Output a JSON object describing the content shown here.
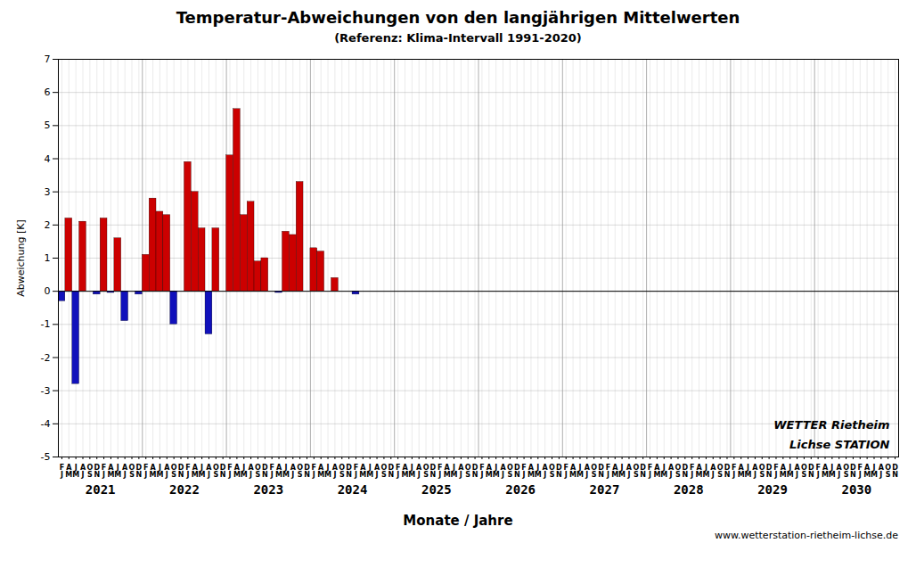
{
  "chart_data": {
    "type": "bar",
    "title": "Temperatur-Abweichungen von den langjährigen Mittelwerten",
    "subtitle": "(Referenz: Klima-Intervall 1991-2020)",
    "ylabel": "Abweichung [K]",
    "xlabel": "Monate / Jahre",
    "categories": [
      "F\nJ",
      "A\nM",
      "J\nM",
      "A\nJ",
      "O\nS",
      "D\nN",
      "F\nJ",
      "A\nM",
      "J\nM",
      "A\nJ",
      "O\nS",
      "D\nN",
      "F\nJ",
      "A\nM",
      "J\nM",
      "A\nJ",
      "O\nS",
      "D\nN",
      "F\nJ",
      "A\nM",
      "J\nM",
      "A\nJ",
      "O\nS",
      "D\nN",
      "F\nJ",
      "A\nM",
      "J\nM",
      "A\nJ",
      "O\nS",
      "D\nN",
      "F\nJ",
      "A\nM",
      "J\nM",
      "A\nJ",
      "O\nS",
      "D\nN",
      "F\nJ",
      "A\nM",
      "J\nM",
      "A\nJ",
      "O\nS",
      "D\nN",
      "F\nJ",
      "A\nM",
      "J\nM",
      "A\nJ",
      "O\nS",
      "D\nN",
      "F\nJ",
      "A\nM",
      "J\nM",
      "A\nJ",
      "O\nS",
      "D\nN",
      "F\nJ",
      "A\nM",
      "J\nM",
      "A\nJ",
      "O\nS",
      "D\nN",
      "F\nJ",
      "A\nM",
      "J\nM",
      "A\nJ",
      "O\nS",
      "D\nN",
      "F\nJ",
      "A\nM",
      "J\nM",
      "A\nJ",
      "O\nS",
      "D\nN",
      "F\nJ",
      "A\nM",
      "J\nM",
      "A\nJ",
      "O\nS",
      "D\nN",
      "F\nJ",
      "A\nM",
      "J\nM",
      "A\nJ",
      "O\nS",
      "D\nN",
      "F\nJ",
      "A\nM",
      "J\nM",
      "A\nJ",
      "O\nS",
      "D\nN",
      "F\nJ",
      "A\nM",
      "J\nM",
      "A\nJ",
      "O\nS",
      "D\nN",
      "F\nJ",
      "A\nM",
      "J\nM",
      "A\nJ",
      "O\nS",
      "D\nN",
      "F\nJ",
      "A\nM",
      "J\nM",
      "A\nJ",
      "O\nS",
      "D\nN",
      "F\nJ",
      "A\nM",
      "J\nM",
      "A\nJ",
      "O\nS",
      "D\nN",
      "F\nJ",
      "A\nM",
      "J\nM",
      "A\nJ",
      "O\nS",
      "D\nN"
    ],
    "x_groups": [
      2021,
      2022,
      2023,
      2024,
      2025,
      2026,
      2027,
      2028,
      2029,
      2030
    ],
    "values": [
      -0.3,
      2.2,
      -2.8,
      2.1,
      0.0,
      -0.1,
      2.2,
      -0.05,
      1.6,
      -0.9,
      0.0,
      -0.1,
      1.1,
      2.8,
      2.4,
      2.3,
      -1.0,
      0.0,
      3.9,
      3.0,
      1.9,
      -1.3,
      1.9,
      0.0,
      4.1,
      5.5,
      2.3,
      2.7,
      0.9,
      1.0,
      0.0,
      -0.05,
      1.8,
      1.7,
      3.3,
      0.0,
      1.3,
      1.2,
      0.0,
      0.4,
      0.0,
      0.0,
      -0.1,
      0.0,
      0.0,
      0.0,
      0.0,
      0.0,
      0.0,
      0.0,
      0.0,
      0.0,
      0.0,
      0.0,
      0.0,
      0.0,
      0.0,
      0.0,
      0.0,
      0.0,
      0.0,
      0.0,
      0.0,
      0.0,
      0.0,
      0.0,
      0.0,
      0.0,
      0.0,
      0.0,
      0.0,
      0.0,
      0.0,
      0.0,
      0.0,
      0.0,
      0.0,
      0.0,
      0.0,
      0.0,
      0.0,
      0.0,
      0.0,
      0.0,
      0.0,
      0.0,
      0.0,
      0.0,
      0.0,
      0.0,
      0.0,
      0.0,
      0.0,
      0.0,
      0.0,
      0.0,
      0.0,
      0.0,
      0.0,
      0.0,
      0.0,
      0.0,
      0.0,
      0.0,
      0.0,
      0.0,
      0.0,
      0.0,
      0.0,
      0.0,
      0.0,
      0.0,
      0.0,
      0.0,
      0.0,
      0.0,
      0.0,
      0.0,
      0.0,
      0.0
    ],
    "colors": [
      "#1111bb",
      "#cc0000",
      "#1111bb",
      "#cc0000",
      "#cc0000",
      "#1111bb",
      "#cc0000",
      "#1111bb",
      "#cc0000",
      "#1111bb",
      "#cc0000",
      "#1111bb",
      "#cc0000",
      "#cc0000",
      "#cc0000",
      "#cc0000",
      "#1111bb",
      "#cc0000",
      "#cc0000",
      "#cc0000",
      "#cc0000",
      "#1111bb",
      "#cc0000",
      "#cc0000",
      "#cc0000",
      "#cc0000",
      "#cc0000",
      "#cc0000",
      "#cc0000",
      "#cc0000",
      "#cc0000",
      "#1111bb",
      "#cc0000",
      "#cc0000",
      "#cc0000",
      "#cc0000",
      "#cc0000",
      "#cc0000",
      "#cc0000",
      "#cc0000",
      "#cc0000",
      "#cc0000",
      "#1111bb",
      "#cc0000",
      "#cc0000",
      "#cc0000",
      "#cc0000",
      "#cc0000",
      "#cc0000",
      "#cc0000",
      "#cc0000",
      "#cc0000",
      "#cc0000",
      "#cc0000",
      "#cc0000",
      "#cc0000",
      "#cc0000",
      "#cc0000",
      "#cc0000",
      "#cc0000",
      "#cc0000",
      "#cc0000",
      "#cc0000",
      "#cc0000",
      "#cc0000",
      "#cc0000",
      "#cc0000",
      "#cc0000",
      "#cc0000",
      "#cc0000",
      "#cc0000",
      "#cc0000",
      "#cc0000",
      "#cc0000",
      "#cc0000",
      "#cc0000",
      "#cc0000",
      "#cc0000",
      "#cc0000",
      "#cc0000",
      "#cc0000",
      "#cc0000",
      "#cc0000",
      "#cc0000",
      "#cc0000",
      "#cc0000",
      "#cc0000",
      "#cc0000",
      "#cc0000",
      "#cc0000",
      "#cc0000",
      "#cc0000",
      "#cc0000",
      "#cc0000",
      "#cc0000",
      "#cc0000",
      "#cc0000",
      "#cc0000",
      "#cc0000",
      "#cc0000",
      "#cc0000",
      "#cc0000",
      "#cc0000",
      "#cc0000",
      "#cc0000",
      "#cc0000",
      "#cc0000",
      "#cc0000",
      "#cc0000",
      "#cc0000",
      "#cc0000",
      "#cc0000",
      "#cc0000",
      "#cc0000",
      "#cc0000",
      "#cc0000",
      "#cc0000",
      "#cc0000",
      "#cc0000",
      "#cc0000"
    ],
    "ylim": [
      -5,
      7
    ],
    "yticks": [
      -5,
      -4,
      -3,
      -2,
      -1,
      0,
      1,
      2,
      3,
      4,
      5,
      6,
      7
    ],
    "grid": true,
    "annotations": [
      "WETTER Rietheim",
      "Lichse STATION"
    ],
    "caption": "www.wetterstation-rietheim-lichse.de"
  }
}
